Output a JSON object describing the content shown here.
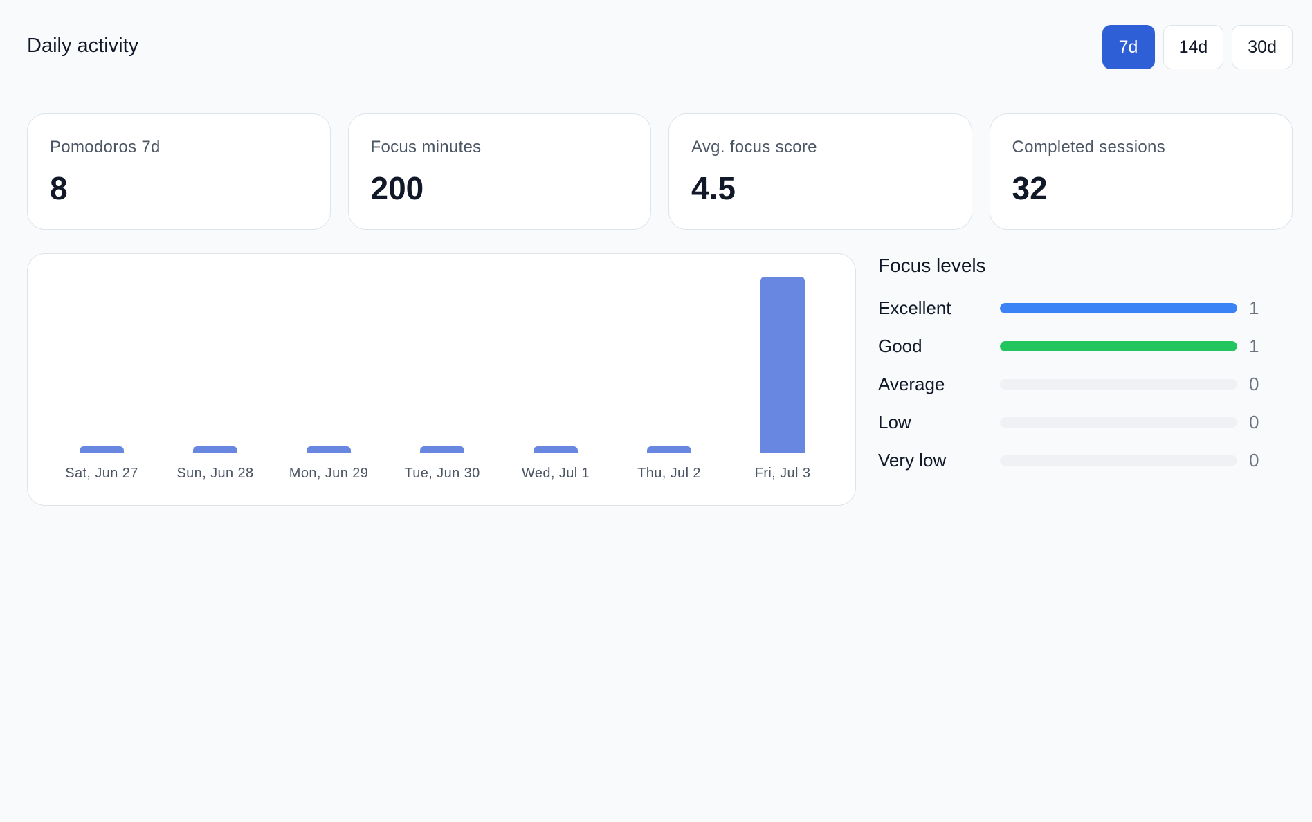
{
  "header": {
    "title": "Daily activity",
    "ranges": [
      {
        "label": "7d",
        "active": true
      },
      {
        "label": "14d",
        "active": false
      },
      {
        "label": "30d",
        "active": false
      }
    ]
  },
  "stats": [
    {
      "label": "Pomodoros 7d",
      "value": "8"
    },
    {
      "label": "Focus minutes",
      "value": "200"
    },
    {
      "label": "Avg. focus score",
      "value": "4.5"
    },
    {
      "label": "Completed sessions",
      "value": "32"
    }
  ],
  "chart_data": {
    "type": "bar",
    "categories": [
      "Sat, Jun 27",
      "Sun, Jun 28",
      "Mon, Jun 29",
      "Tue, Jun 30",
      "Wed, Jul 1",
      "Thu, Jul 2",
      "Fri, Jul 3"
    ],
    "values": [
      0,
      0,
      0,
      0,
      0,
      0,
      200
    ],
    "title": "",
    "xlabel": "",
    "ylabel": "",
    "ylim": [
      0,
      200
    ],
    "grid": false,
    "bar_color": "#6787e0"
  },
  "focus_levels": {
    "title": "Focus levels",
    "max": 1,
    "items": [
      {
        "label": "Excellent",
        "count": 1,
        "color": "#3b82f6"
      },
      {
        "label": "Good",
        "count": 1,
        "color": "#22c55e"
      },
      {
        "label": "Average",
        "count": 0,
        "color": "#3b82f6"
      },
      {
        "label": "Low",
        "count": 0,
        "color": "#3b82f6"
      },
      {
        "label": "Very low",
        "count": 0,
        "color": "#3b82f6"
      }
    ]
  }
}
